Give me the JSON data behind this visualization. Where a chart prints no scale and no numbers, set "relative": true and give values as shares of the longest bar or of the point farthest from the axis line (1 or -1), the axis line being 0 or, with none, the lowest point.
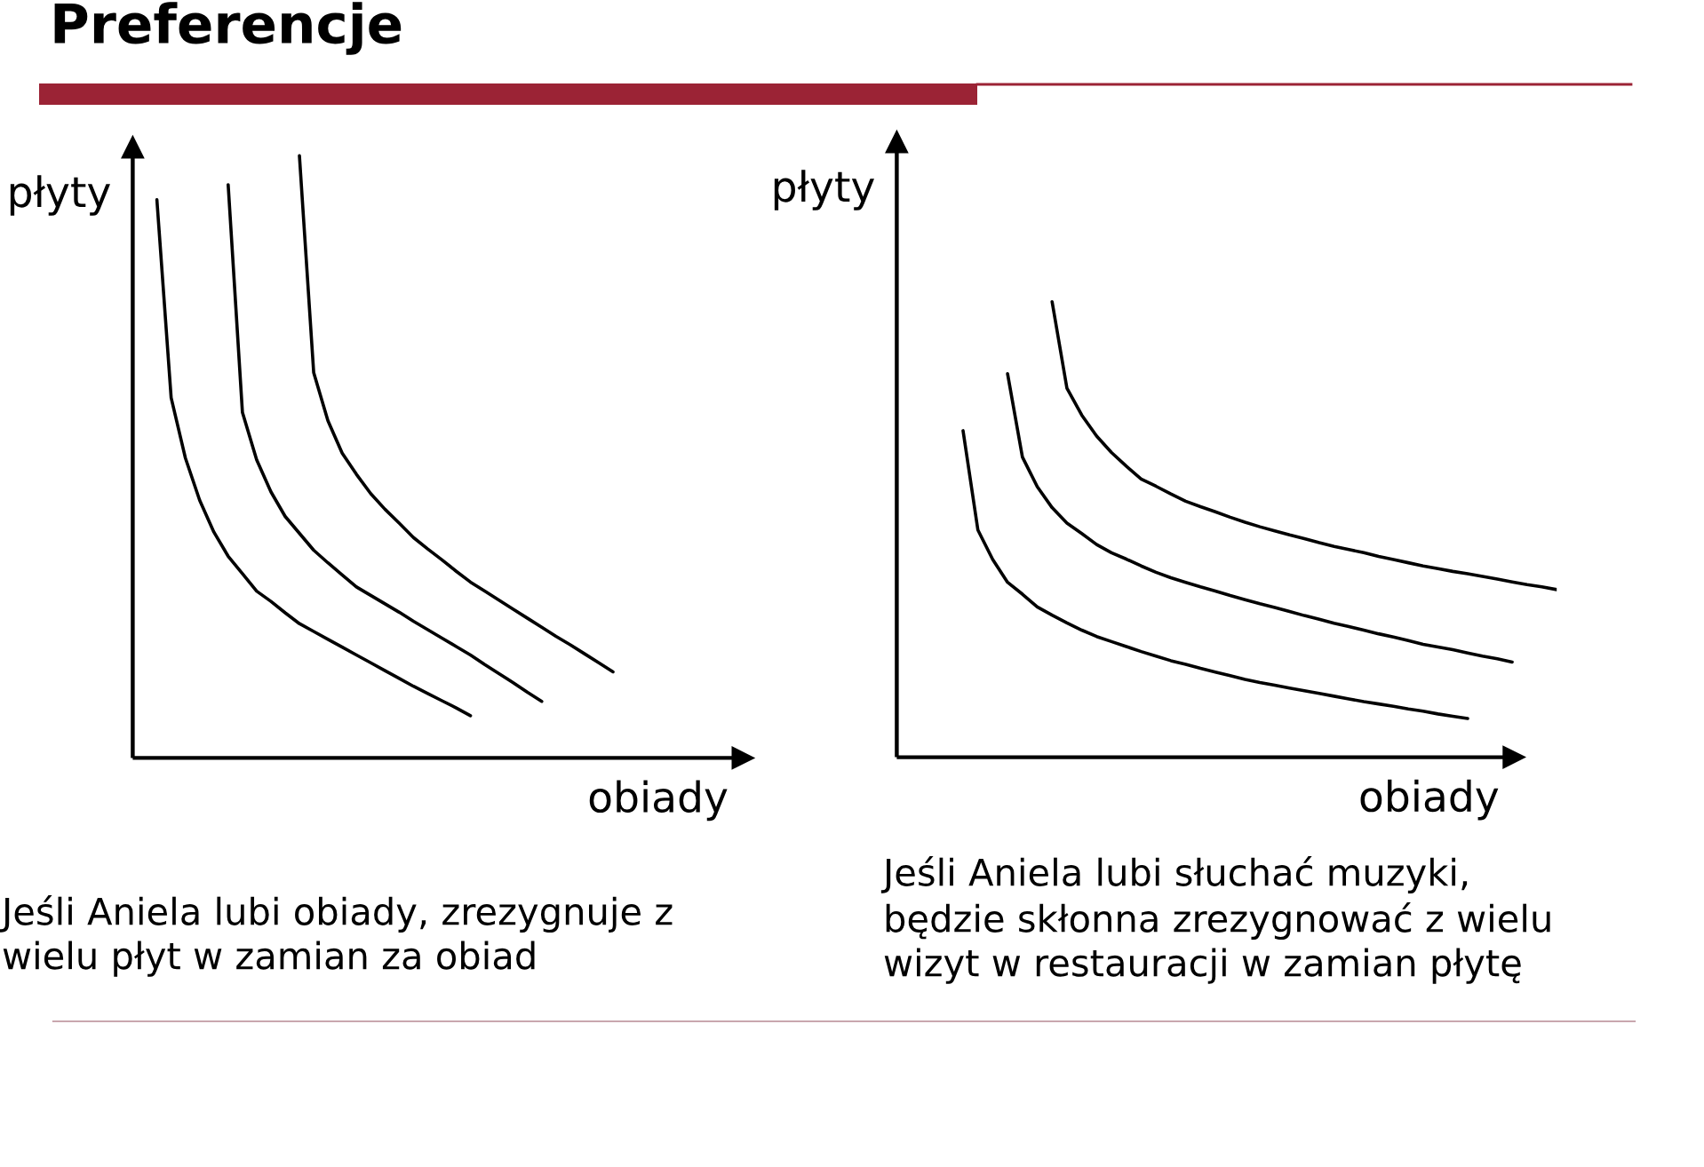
{
  "chart_data": [
    {
      "type": "line",
      "title": "Preferencje",
      "xlabel": "obiady",
      "ylabel": "płyty",
      "relative": true,
      "categories": [
        null,
        null,
        null,
        null,
        null,
        null,
        null,
        null,
        null,
        null,
        null,
        null,
        null,
        null,
        null,
        null,
        null,
        null,
        null,
        null,
        null,
        null,
        null,
        null,
        null,
        null,
        null,
        null,
        null,
        null,
        null,
        null,
        null
      ],
      "series": [
        {
          "color": "#000000",
          "values": [
            0.927,
            0.598,
            0.498,
            0.428,
            0.375,
            0.335,
            0.306,
            0.277,
            0.26,
            0.241,
            0.223,
            0.21,
            0.197,
            0.184,
            0.171,
            0.158,
            0.145,
            0.132,
            0.119,
            0.107,
            0.095,
            0.083,
            0.07,
            null,
            null,
            null,
            null,
            null,
            null,
            null,
            null,
            null,
            null
          ]
        },
        {
          "color": "#000000",
          "values": [
            null,
            null,
            null,
            null,
            null,
            0.952,
            0.574,
            0.495,
            0.442,
            0.401,
            0.373,
            0.345,
            0.324,
            0.304,
            0.284,
            0.27,
            0.256,
            0.242,
            0.227,
            0.213,
            0.199,
            0.185,
            0.171,
            0.155,
            0.14,
            0.125,
            0.109,
            0.094,
            null,
            null,
            null,
            null,
            null
          ]
        },
        {
          "color": "#000000",
          "values": [
            null,
            null,
            null,
            null,
            null,
            null,
            null,
            null,
            null,
            null,
            1,
            0.64,
            0.56,
            0.506,
            0.471,
            0.439,
            0.413,
            0.39,
            0.366,
            0.347,
            0.329,
            0.31,
            0.292,
            0.277,
            0.262,
            0.247,
            0.232,
            0.217,
            0.202,
            0.188,
            0.173,
            0.158,
            0.143
          ]
        }
      ],
      "annotations": [
        "Jeśli Aniela lubi obiady, zrezygnuje z\nwielu płyt w zamian za obiad"
      ]
    },
    {
      "type": "line",
      "xlabel": "obiady",
      "ylabel": "płyty",
      "relative": true,
      "categories": [
        null,
        null,
        null,
        null,
        null,
        null,
        null,
        null,
        null,
        null,
        null,
        null,
        null,
        null,
        null,
        null,
        null,
        null,
        null,
        null,
        null,
        null,
        null,
        null,
        null,
        null,
        null,
        null,
        null,
        null,
        null,
        null,
        null,
        null,
        null,
        null,
        null,
        null,
        null,
        null,
        null
      ],
      "series": [
        {
          "color": "#000000",
          "values": [
            0.717,
            0.499,
            0.434,
            0.384,
            0.358,
            0.33,
            0.312,
            0.295,
            0.279,
            0.265,
            0.254,
            0.243,
            0.232,
            0.222,
            0.212,
            0.204,
            0.195,
            0.187,
            0.179,
            0.171,
            0.164,
            0.158,
            0.152,
            0.146,
            0.14,
            0.134,
            0.128,
            0.122,
            0.117,
            0.112,
            0.106,
            0.101,
            0.095,
            0.09,
            0.085,
            null,
            null,
            null,
            null,
            null,
            null
          ]
        },
        {
          "color": "#000000",
          "values": [
            null,
            null,
            null,
            0.842,
            0.659,
            0.594,
            0.548,
            0.514,
            0.491,
            0.467,
            0.449,
            0.435,
            0.42,
            0.406,
            0.394,
            0.384,
            0.374,
            0.365,
            0.355,
            0.346,
            0.337,
            0.329,
            0.32,
            0.311,
            0.303,
            0.294,
            0.287,
            0.279,
            0.271,
            0.264,
            0.256,
            0.248,
            0.242,
            0.236,
            0.229,
            0.222,
            0.216,
            0.209,
            null,
            null,
            null
          ]
        },
        {
          "color": "#000000",
          "values": [
            null,
            null,
            null,
            null,
            null,
            null,
            1,
            0.81,
            0.751,
            0.705,
            0.669,
            0.639,
            0.611,
            0.595,
            0.578,
            0.562,
            0.55,
            0.539,
            0.527,
            0.516,
            0.506,
            0.497,
            0.488,
            0.48,
            0.471,
            0.463,
            0.456,
            0.449,
            0.441,
            0.434,
            0.427,
            0.42,
            0.414,
            0.408,
            0.403,
            0.397,
            0.391,
            0.385,
            0.379,
            0.374,
            0.368
          ]
        }
      ],
      "annotations": [
        "Jeśli Aniela lubi słuchać muzyki,\nbędzie skłonna zrezygnować z wielu\nwizyt w restauracji w zamian płytę"
      ]
    }
  ]
}
